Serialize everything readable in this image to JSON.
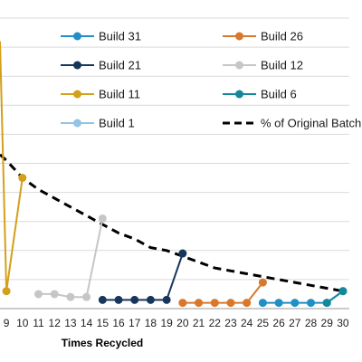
{
  "chart_data": {
    "type": "line",
    "title": "",
    "xlabel": "Times Recycled",
    "ylabel": "",
    "x_ticks": [
      9,
      10,
      11,
      12,
      13,
      14,
      15,
      16,
      17,
      18,
      19,
      20,
      21,
      22,
      23,
      24,
      25,
      26,
      27,
      28,
      29,
      30
    ],
    "xlim": [
      8.6,
      30.4
    ],
    "ylim": [
      0,
      1
    ],
    "grid": "horizontal",
    "legend_position": "top, two columns",
    "series": [
      {
        "name": "Build 31",
        "color": "#1f8fc6",
        "marker": "circle",
        "x": [
          25,
          26,
          27,
          28,
          29,
          30
        ],
        "y": [
          0.02,
          0.02,
          0.02,
          0.02,
          0.02,
          0.06
        ]
      },
      {
        "name": "Build 26",
        "color": "#d9772b",
        "marker": "circle",
        "x": [
          20,
          21,
          22,
          23,
          24,
          25
        ],
        "y": [
          0.02,
          0.02,
          0.02,
          0.02,
          0.02,
          0.09
        ]
      },
      {
        "name": "Build 21",
        "color": "#16365c",
        "marker": "circle",
        "x": [
          15,
          16,
          17,
          18,
          19,
          20
        ],
        "y": [
          0.03,
          0.03,
          0.03,
          0.03,
          0.03,
          0.19
        ]
      },
      {
        "name": "Build 12",
        "color": "#c6c6c6",
        "marker": "circle",
        "x": [
          11,
          12,
          13,
          14,
          15
        ],
        "y": [
          0.05,
          0.05,
          0.04,
          0.04,
          0.31
        ]
      },
      {
        "name": "Build 11",
        "color": "#d4a01a",
        "marker": "circle",
        "x": [
          8.6,
          9,
          10
        ],
        "y": [
          0.92,
          0.06,
          0.45
        ]
      },
      {
        "name": "Build 6",
        "color": "#14889b",
        "marker": "circle",
        "x": [
          29,
          30
        ],
        "y": [
          0.02,
          0.06
        ]
      },
      {
        "name": "Build 1",
        "color": "#92c4e6",
        "marker": "circle",
        "x": [],
        "y": []
      },
      {
        "name": "% of Original Batch",
        "color": "#000000",
        "dash": true,
        "marker": "none",
        "x": [
          8.6,
          9,
          10,
          11,
          12,
          13,
          14,
          15,
          16,
          17,
          18,
          19,
          20,
          21,
          22,
          23,
          24,
          25,
          26,
          27,
          28,
          29,
          30
        ],
        "y": [
          0.53,
          0.51,
          0.45,
          0.41,
          0.38,
          0.35,
          0.32,
          0.29,
          0.26,
          0.24,
          0.21,
          0.2,
          0.18,
          0.16,
          0.14,
          0.13,
          0.12,
          0.11,
          0.1,
          0.09,
          0.08,
          0.07,
          0.06
        ]
      }
    ]
  }
}
